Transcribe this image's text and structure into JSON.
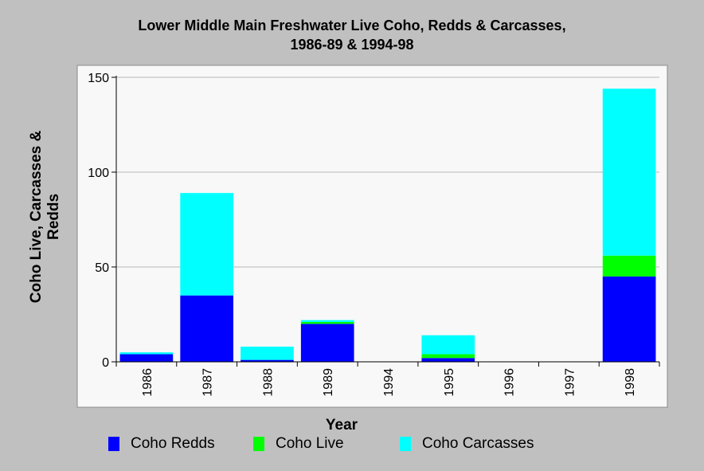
{
  "chart_data": {
    "type": "bar",
    "stacked": true,
    "title_line1": "Lower Middle Main Freshwater Live Coho, Redds & Carcasses,",
    "title_line2": "1986-89 & 1994-98",
    "xlabel": "Year",
    "ylabel_line1": "Coho Live, Carcasses &",
    "ylabel_line2": "Redds",
    "ylim": [
      0,
      150
    ],
    "yticks": [
      0,
      50,
      100,
      150
    ],
    "grid": true,
    "legend_position": "bottom",
    "categories": [
      "1986",
      "1987",
      "1988",
      "1989",
      "1994",
      "1995",
      "1996",
      "1997",
      "1998"
    ],
    "series": [
      {
        "name": "Coho Redds",
        "color": "#0000ff",
        "values": [
          4,
          35,
          1,
          20,
          0,
          2,
          0,
          0,
          45
        ]
      },
      {
        "name": "Coho Live",
        "color": "#00ff00",
        "values": [
          0,
          0,
          0,
          1,
          0,
          2,
          0,
          0,
          11
        ]
      },
      {
        "name": "Coho Carcasses",
        "color": "#00ffff",
        "values": [
          1,
          54,
          7,
          1,
          0,
          10,
          0,
          0,
          88
        ]
      }
    ]
  }
}
